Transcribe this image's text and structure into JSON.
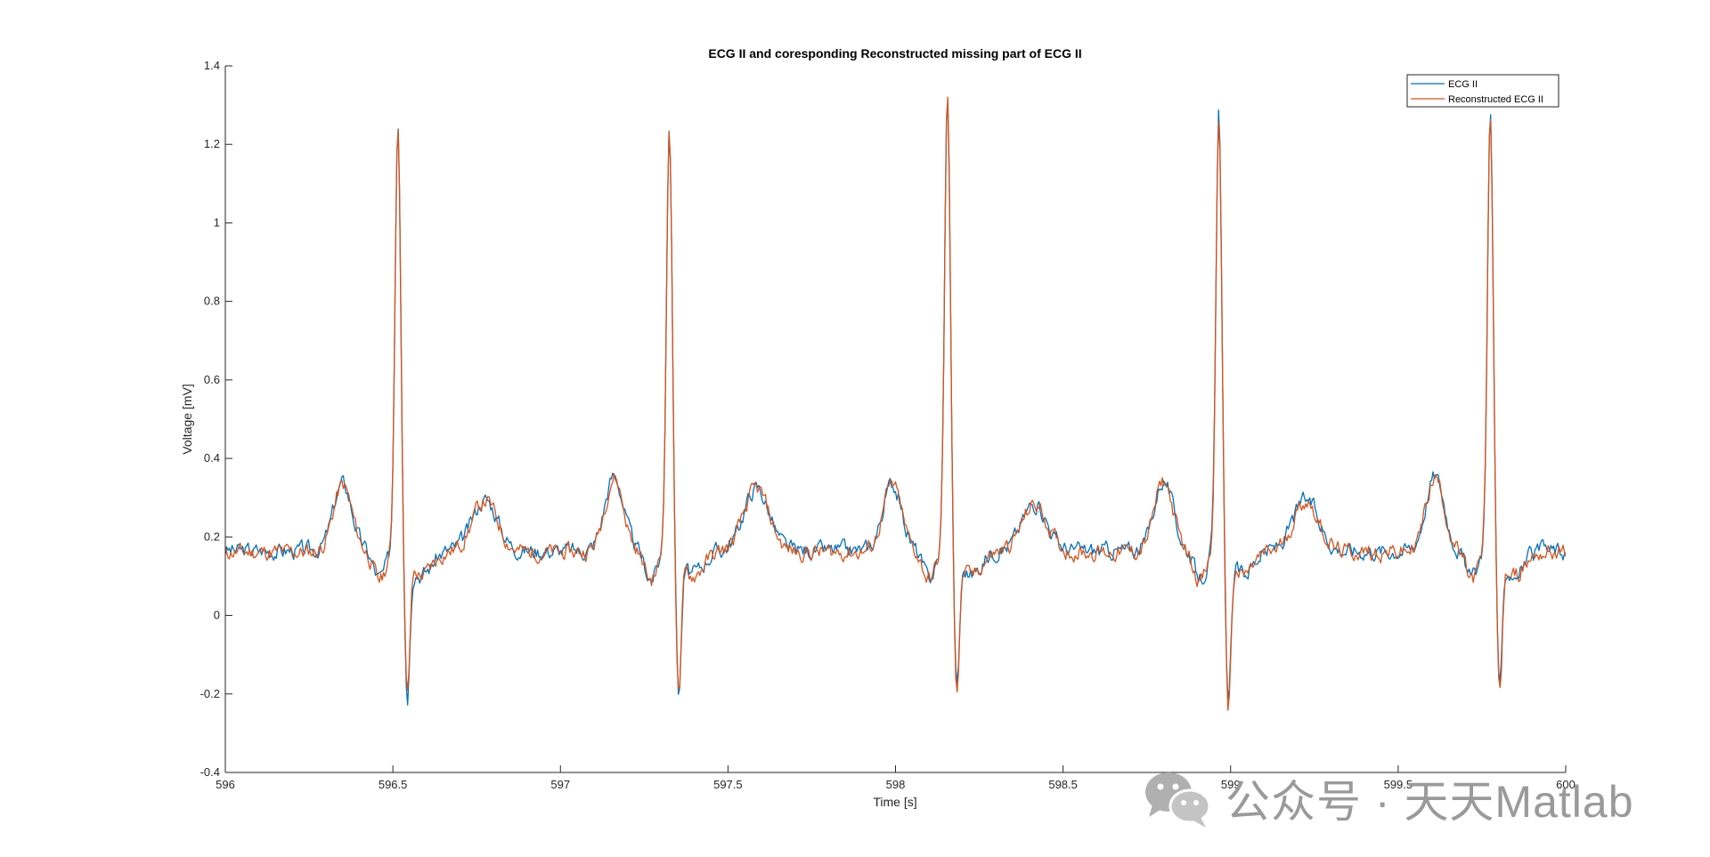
{
  "chart_data": {
    "type": "line",
    "title": "ECG II and coresponding Reconstructed missing part of ECG II",
    "xlabel": "Time [s]",
    "ylabel": "Voltage [mV]",
    "xlim": [
      596,
      600
    ],
    "ylim": [
      -0.4,
      1.4
    ],
    "x_ticks": [
      596,
      596.5,
      597,
      597.5,
      598,
      598.5,
      599,
      599.5,
      600
    ],
    "x_tick_labels": [
      "596",
      "596.5",
      "597",
      "597.5",
      "598",
      "598.5",
      "599",
      "599.5",
      "600"
    ],
    "y_ticks": [
      -0.4,
      -0.2,
      0,
      0.2,
      0.4,
      0.6,
      0.8,
      1.0,
      1.2,
      1.4
    ],
    "y_tick_labels": [
      "-0.4",
      "-0.2",
      "0",
      "0.2",
      "0.4",
      "0.6",
      "0.8",
      "1",
      "1.2",
      "1.4"
    ],
    "grid": false,
    "legend_position": "top-right",
    "beats": [
      {
        "t": 596.515,
        "peak": 1.21,
        "trough": -0.21,
        "t_wave": 0.29,
        "p_wave": 0.34
      },
      {
        "t": 597.325,
        "peak": 1.19,
        "trough": -0.2,
        "t_wave": 0.32,
        "p_wave": 0.36
      },
      {
        "t": 598.155,
        "peak": 1.27,
        "trough": -0.19,
        "t_wave": 0.28,
        "p_wave": 0.34
      },
      {
        "t": 598.965,
        "peak": 1.22,
        "trough": -0.24,
        "t_wave": 0.29,
        "p_wave": 0.35
      },
      {
        "t": 599.775,
        "peak": 1.22,
        "trough": -0.2,
        "t_wave": null,
        "p_wave": 0.36
      }
    ],
    "series": [
      {
        "name": "ECG II",
        "color": "#0072BD",
        "noise_seed": 3,
        "offset": 0.0
      },
      {
        "name": "Reconstructed ECG II",
        "color": "#D95319",
        "noise_seed": 11,
        "offset": -0.004
      }
    ]
  },
  "watermark": {
    "text": "公众号 · 天天Matlab",
    "icon": "wechat-icon"
  }
}
